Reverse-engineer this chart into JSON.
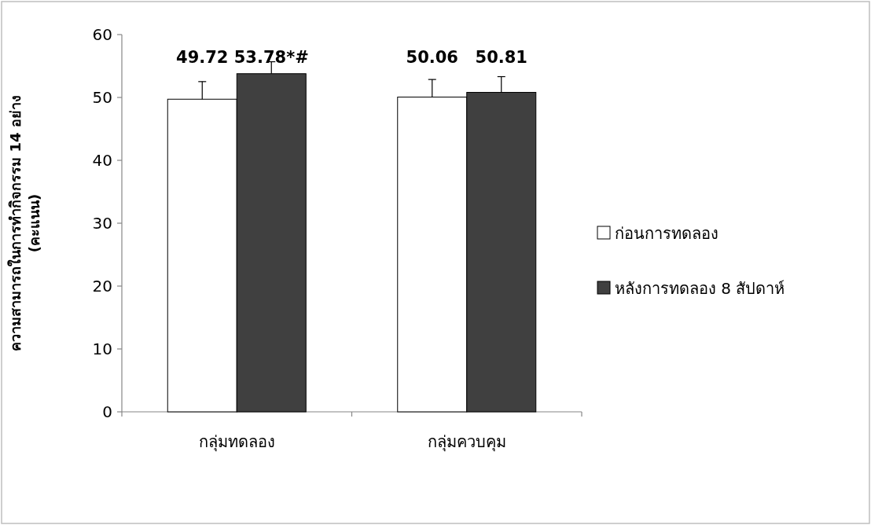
{
  "chart_data": {
    "type": "bar",
    "ylabel": "ความสามารถในการทำกิจกรรม 14 อย่าง (คะแนน)",
    "categories": [
      "กลุ่มทดลอง",
      "กลุ่มควบคุม"
    ],
    "series": [
      {
        "name": "ก่อนการทดลอง",
        "color": "#ffffff",
        "values": [
          49.72,
          50.06
        ],
        "errors": [
          2.8,
          2.8
        ],
        "value_labels": [
          "49.72",
          "50.06"
        ]
      },
      {
        "name": "หลังการทดลอง 8 สัปดาห์",
        "color": "#404040",
        "values": [
          53.78,
          50.81
        ],
        "errors": [
          1.9,
          2.5
        ],
        "value_labels": [
          "53.78*#",
          "50.81"
        ]
      }
    ],
    "ylim": [
      0,
      60
    ],
    "yticks": [
      0,
      10,
      20,
      30,
      40,
      50,
      60
    ],
    "grid": false,
    "legend": "right"
  }
}
